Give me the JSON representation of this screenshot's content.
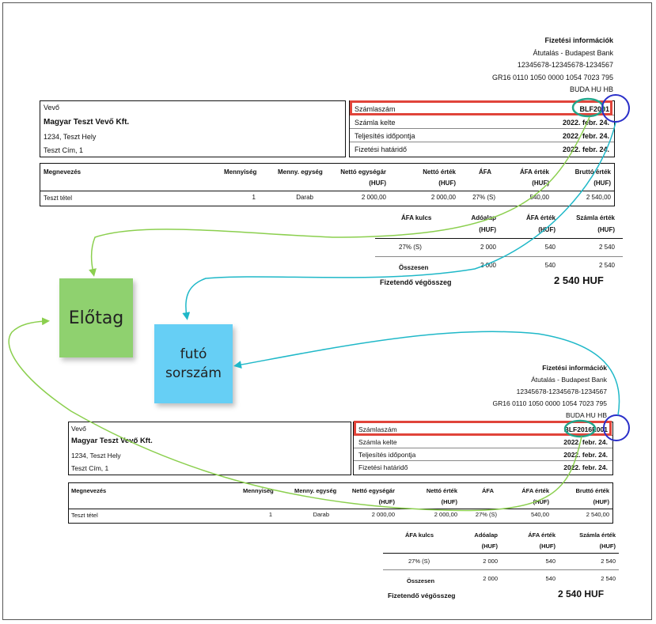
{
  "invoices": [
    {
      "payment": {
        "title": "Fizetési információk",
        "lines": [
          "Átutalás - Budapest Bank",
          "12345678-12345678-1234567",
          "GR16 0110 1050 0000 1054 7023 795",
          "BUDA HU HB"
        ]
      },
      "buyer": {
        "label": "Vevő",
        "name": "Magyar Teszt Vevő Kft.",
        "addr1": "1234, Teszt Hely",
        "addr2": "Teszt Cím, 1"
      },
      "meta": [
        {
          "label": "Számlaszám",
          "value": "BLF2001"
        },
        {
          "label": "Számla kelte",
          "value": "2022. febr. 24."
        },
        {
          "label": "Teljesítés időpontja",
          "value": "2022. febr. 24."
        },
        {
          "label": "Fizetési határidő",
          "value": "2022. febr. 24."
        }
      ],
      "items_headers": [
        "Megnevezés",
        "Mennyiség",
        "Menny. egység",
        "Nettó egységár",
        "(HUF)",
        "Nettó érték",
        "(HUF)",
        "ÁFA",
        "ÁFA érték",
        "(HUF)",
        "Bruttó érték",
        "(HUF)"
      ],
      "items": [
        {
          "name": "Teszt tétel",
          "qty": "1",
          "unit": "Darab",
          "unit_price": "2 000,00",
          "net": "2 000,00",
          "vat": "27% (S)",
          "vat_amount": "540,00",
          "gross": "2 540,00"
        }
      ],
      "vat_headers": [
        "ÁFA kulcs",
        "Adóalap",
        "(HUF)",
        "ÁFA érték",
        "(HUF)",
        "Számla érték",
        "(HUF)"
      ],
      "vat_row": {
        "rate": "27% (S)",
        "base": "2 000",
        "vat": "540",
        "total": "2 540"
      },
      "sum_row": {
        "label": "Összesen",
        "base": "2 000",
        "vat": "540",
        "total": "2 540"
      },
      "payable": {
        "label": "Fizetendő végösszeg",
        "value": "2 540 HUF"
      }
    },
    {
      "payment": {
        "title": "Fizetési információk",
        "lines": [
          "Átutalás - Budapest Bank",
          "12345678-12345678-1234567",
          "GR16 0110 1050 0000 1054 7023 795",
          "BUDA HU HB"
        ]
      },
      "buyer": {
        "label": "Vevő",
        "name": "Magyar Teszt Vevő Kft.",
        "addr1": "1234, Teszt Hely",
        "addr2": "Teszt Cím, 1"
      },
      "meta": [
        {
          "label": "Számlaszám",
          "value": "BLF2016E001"
        },
        {
          "label": "Számla kelte",
          "value": "2022. febr. 24."
        },
        {
          "label": "Teljesítés időpontja",
          "value": "2022. febr. 24."
        },
        {
          "label": "Fizetési határidő",
          "value": "2022. febr. 24."
        }
      ],
      "items_headers": [
        "Megnevezés",
        "Mennyiség",
        "Menny. egység",
        "Nettó egységár",
        "(HUF)",
        "Nettó érték",
        "(HUF)",
        "ÁFA",
        "ÁFA érték",
        "(HUF)",
        "Bruttó érték",
        "(HUF)"
      ],
      "items": [
        {
          "name": "Teszt tétel",
          "qty": "1",
          "unit": "Darab",
          "unit_price": "2 000,00",
          "net": "2 000,00",
          "vat": "27% (S)",
          "vat_amount": "540,00",
          "gross": "2 540,00"
        }
      ],
      "vat_headers": [
        "ÁFA kulcs",
        "Adóalap",
        "(HUF)",
        "ÁFA érték",
        "(HUF)",
        "Számla érték",
        "(HUF)"
      ],
      "vat_row": {
        "rate": "27% (S)",
        "base": "2 000",
        "vat": "540",
        "total": "2 540"
      },
      "sum_row": {
        "label": "Összesen",
        "base": "2 000",
        "vat": "540",
        "total": "2 540"
      },
      "payable": {
        "label": "Fizetendő végösszeg",
        "value": "2 540 HUF"
      }
    }
  ],
  "notes": {
    "prefix": {
      "label": "Előtag",
      "color": "#8fd16f"
    },
    "serial": {
      "label1": "futó",
      "label2": "sorszám",
      "color": "#66cff5"
    }
  },
  "colors": {
    "highlight": "#e0443a",
    "prefix_arrow": "#8bcf4e",
    "serial_arrow": "#1fb8c8",
    "circle": "#2a2fc9",
    "oval": "#22a58a"
  }
}
